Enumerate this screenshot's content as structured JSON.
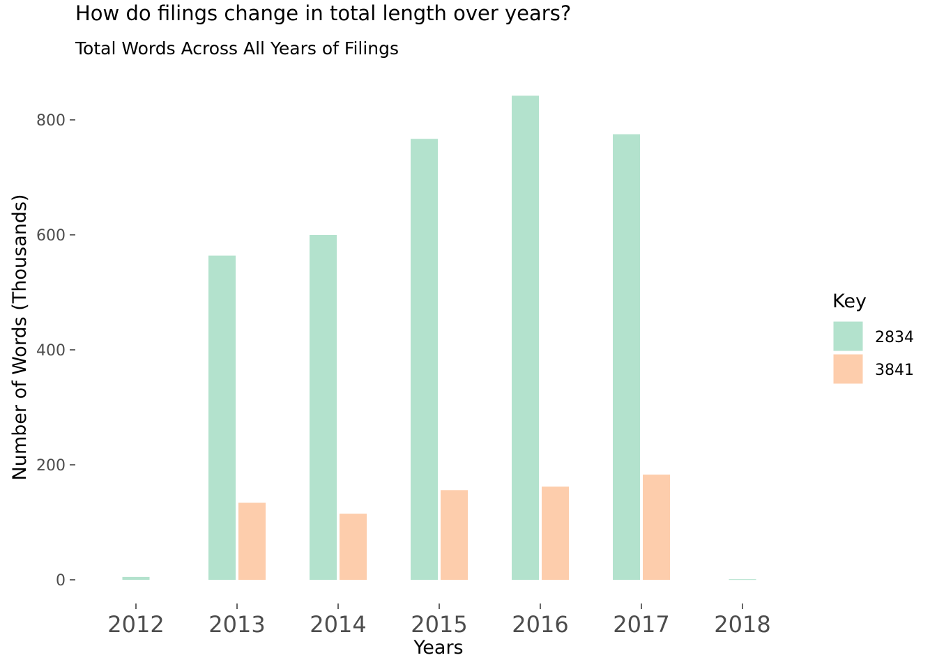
{
  "chart_data": {
    "type": "bar",
    "title": "How do filings change in total length over years?",
    "subtitle": "Total Words Across All Years of Filings",
    "xlabel": "Years",
    "ylabel": "Number of Words (Thousands)",
    "categories": [
      "2012",
      "2013",
      "2014",
      "2015",
      "2016",
      "2017",
      "2018"
    ],
    "series": [
      {
        "name": "2834",
        "color": "#b3e2cd",
        "values": [
          5,
          564,
          600,
          767,
          842,
          775,
          1
        ]
      },
      {
        "name": "3841",
        "color": "#fdcdac",
        "values": [
          null,
          134,
          115,
          156,
          162,
          183,
          null
        ]
      }
    ],
    "yticks": [
      0,
      200,
      400,
      600,
      800
    ],
    "ylim": [
      -35,
      880
    ],
    "grid": false,
    "legend": {
      "title": "Key",
      "placement": "right"
    }
  }
}
